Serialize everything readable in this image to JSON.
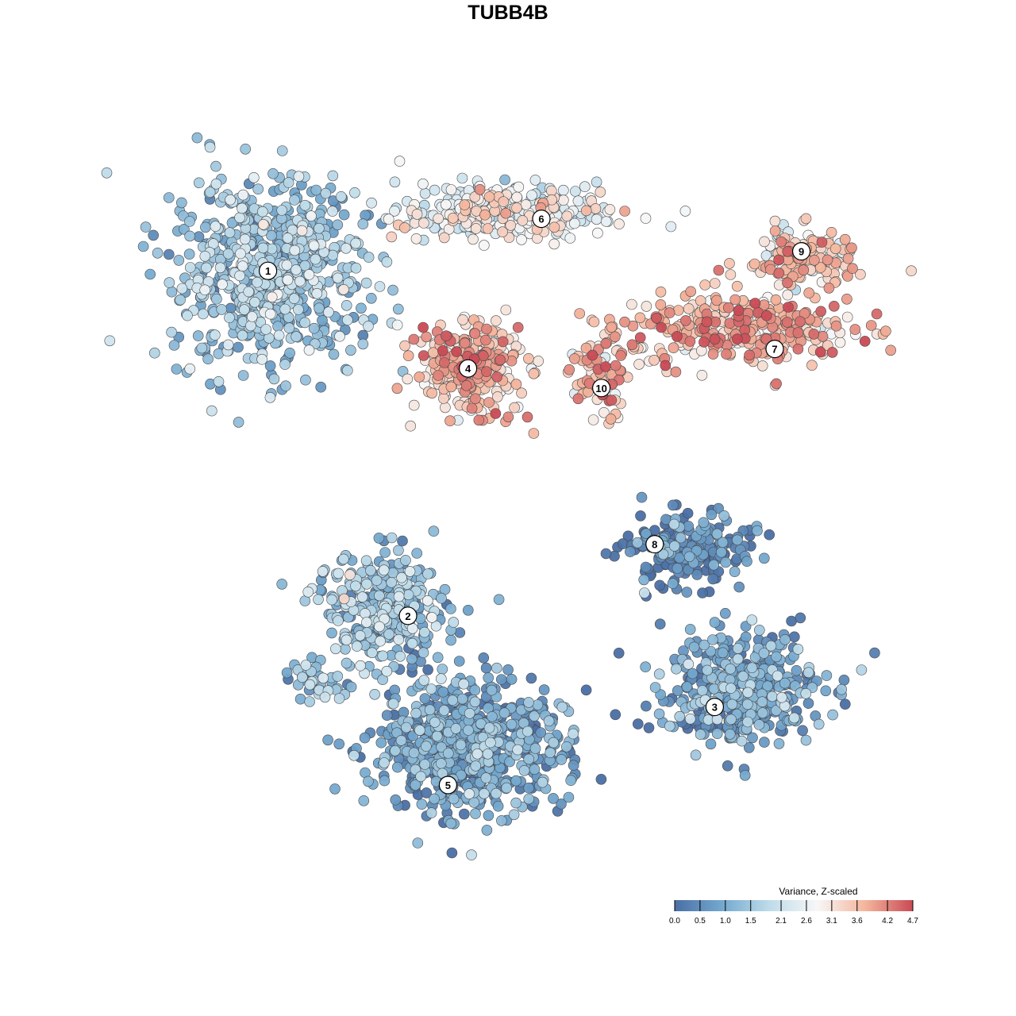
{
  "chart_data": {
    "type": "scatter",
    "title": "TUBB4B",
    "xlabel": "",
    "ylabel": "",
    "grid": false,
    "legend_placement": "bottom-right",
    "color_scale": {
      "title": "Variance, Z-scaled",
      "min": 0.0,
      "max": 4.7,
      "ticks": [
        0.0,
        0.5,
        1.0,
        1.5,
        2.1,
        2.6,
        3.1,
        3.6,
        4.2,
        4.7
      ],
      "tick_labels": [
        "0.0",
        "0.5",
        "1.0",
        "1.5",
        "2.1",
        "2.6",
        "3.1",
        "3.6",
        "4.2",
        "4.7"
      ],
      "colors": [
        "#4a6fa5",
        "#74a9cf",
        "#bfdcea",
        "#f7f7f7",
        "#f4b59c",
        "#c94a55"
      ]
    },
    "clusters": [
      {
        "label": "1",
        "x": -3.6,
        "y": 3.4,
        "mean_value": 1.4
      },
      {
        "label": "2",
        "x": -1.5,
        "y": -1.9,
        "mean_value": 1.3
      },
      {
        "label": "3",
        "x": 3.1,
        "y": -3.3,
        "mean_value": 0.8
      },
      {
        "label": "4",
        "x": -0.6,
        "y": 1.9,
        "mean_value": 3.5
      },
      {
        "label": "5",
        "x": -0.9,
        "y": -4.5,
        "mean_value": 0.8
      },
      {
        "label": "6",
        "x": 0.5,
        "y": 4.2,
        "mean_value": 2.6
      },
      {
        "label": "7",
        "x": 4.0,
        "y": 2.2,
        "mean_value": 3.7
      },
      {
        "label": "8",
        "x": 2.2,
        "y": -0.8,
        "mean_value": 0.3
      },
      {
        "label": "9",
        "x": 4.4,
        "y": 3.7,
        "mean_value": 3.3
      },
      {
        "label": "10",
        "x": 1.4,
        "y": 1.6,
        "mean_value": 3.6
      }
    ]
  }
}
